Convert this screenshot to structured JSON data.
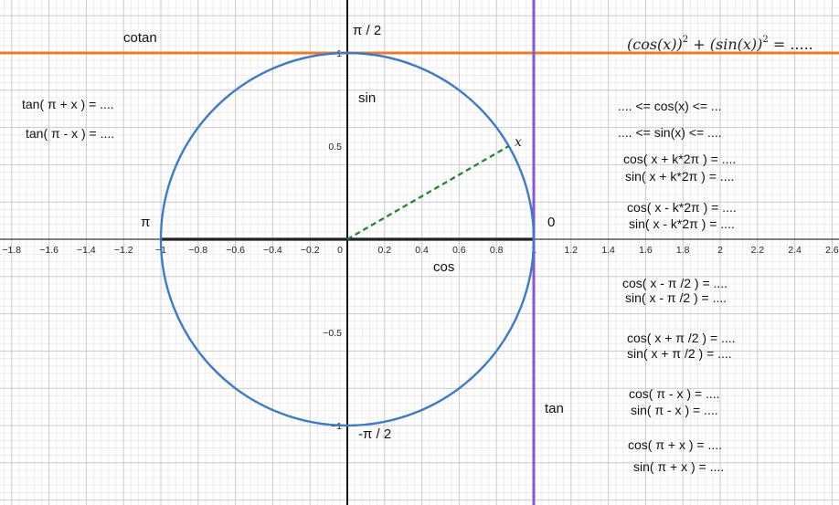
{
  "chart_data": {
    "type": "diagram",
    "title": "",
    "xlim": [
      -1.86,
      2.6
    ],
    "ylim": [
      -1.45,
      1.27
    ],
    "grid": true,
    "x_ticks": [
      "−1.8",
      "−1.6",
      "−1.4",
      "−1.2",
      "−1",
      "−0.8",
      "−0.6",
      "−0.4",
      "−0.2",
      "0",
      "0.2",
      "0.4",
      "0.6",
      "0.8",
      "1",
      "1.2",
      "1.4",
      "1.6",
      "1.8",
      "2",
      "2.2",
      "2.4",
      "2.6"
    ],
    "x_tick_values": [
      -1.8,
      -1.6,
      -1.4,
      -1.2,
      -1,
      -0.8,
      -0.6,
      -0.4,
      -0.2,
      0,
      0.2,
      0.4,
      0.6,
      0.8,
      1,
      1.2,
      1.4,
      1.6,
      1.8,
      2,
      2.2,
      2.4,
      2.6
    ],
    "y_ticks": [
      "1",
      "0.5",
      "−0.5",
      "−1"
    ],
    "y_tick_values": [
      1,
      0.5,
      -0.5,
      -1
    ],
    "circle": {
      "center": [
        0,
        0
      ],
      "radius": 1,
      "color": "#3a7bd0"
    },
    "radius_segment": {
      "from": [
        0,
        0
      ],
      "to": [
        0.866,
        0.5
      ],
      "color": "#1a8a2e",
      "label": "x"
    },
    "cos_axis_segment": {
      "from": [
        -1,
        0
      ],
      "to": [
        1,
        0
      ],
      "color": "#222222"
    },
    "cotan_line": {
      "y": 1,
      "color": "#f07a21"
    },
    "tan_line": {
      "x": 1,
      "color": "#8a55d6"
    }
  },
  "labels": {
    "pi_half": "π / 2",
    "minus_pi_half": "-π / 2",
    "pi": "π",
    "zero": "0",
    "sin": "sin",
    "cos": "cos",
    "tan": "tan",
    "cotan": "cotan"
  },
  "identity": {
    "a": "(cos(x))",
    "a_exp": "2",
    "plus": " + ",
    "b": "(sin(x))",
    "b_exp": "2",
    "rest": " = ....."
  },
  "left_exercises": [
    "tan( π  + x ) = ....",
    "tan( π  - x ) = ...."
  ],
  "right_exercises": [
    ".... <= cos(x) <= ...",
    ".... <= sin(x) <= ....",
    "cos( x + k*2π ) = ....",
    "sin( x + k*2π ) = ....",
    "cos( x - k*2π ) = ....",
    "sin( x - k*2π ) = ....",
    "cos( x - π /2 ) = ....",
    "sin( x - π /2 ) = ....",
    "cos( x + π /2 ) = ....",
    "sin( x + π /2 ) = ....",
    "cos( π  - x ) = ....",
    "sin( π - x  ) = ....",
    "cos( π  + x ) = ....",
    "sin( π  + x ) = ...."
  ]
}
